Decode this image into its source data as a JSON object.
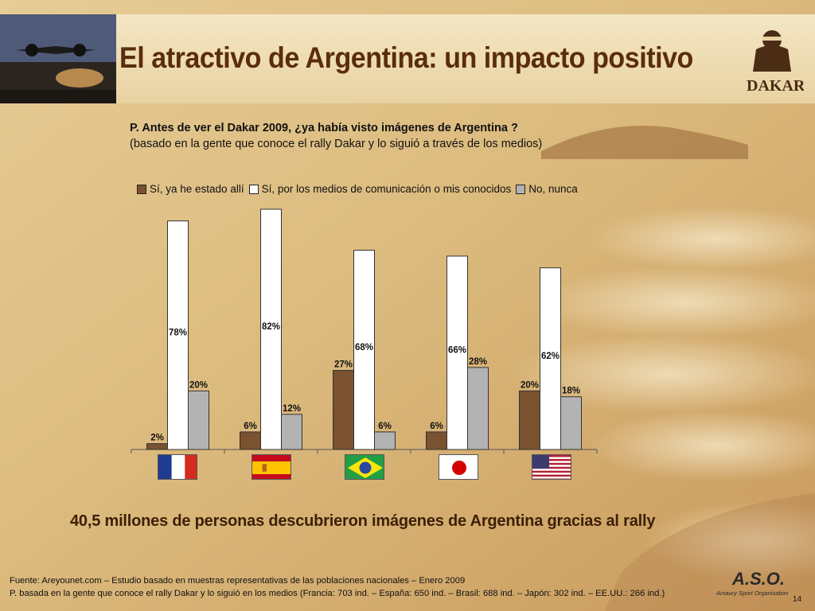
{
  "title": "El atractivo de Argentina: un impacto positivo",
  "question": {
    "line1": "P. Antes de ver el Dakar 2009, ¿ya había visto imágenes de Argentina ?",
    "line2": "(basado en la gente que conoce el rally Dakar y lo siguió a través de los medios)"
  },
  "headline": "40,5 millones de personas descubrieron imágenes de Argentina gracias al rally",
  "footnote": {
    "line1": "Fuente: Areyounet.com –  Estudio basado en muestras representativas de las poblaciones nacionales – Enero 2009",
    "line2": "P. basada en la gente que conoce el rally Dakar  y lo siguió en los medios (Francia: 703 ind. – España: 650 ind. – Brasil: 688 ind. – Japón: 302 ind. – EE.UU.: 266 ind.)"
  },
  "page_number": "14",
  "logos": {
    "dakar": "DAKAR",
    "aso": "A.S.O.",
    "aso_sub": "Amaury Sport Organisation"
  },
  "colors": {
    "been_there": "#7a5230",
    "media": "#ffffff",
    "never": "#b3b3b3",
    "title": "#5a2d0c"
  },
  "chart_data": {
    "type": "bar",
    "categories": [
      "France",
      "Spain",
      "Brazil",
      "Japan",
      "USA"
    ],
    "category_display": "flags",
    "series": [
      {
        "name": "Sí, ya he estado allí",
        "values": [
          2,
          6,
          27,
          6,
          20
        ],
        "labels": [
          "2%",
          "6%",
          "27%",
          "6%",
          "20%"
        ]
      },
      {
        "name": "Sí, por los medios de comunicación o mis conocidos",
        "values": [
          78,
          82,
          68,
          66,
          62
        ],
        "labels": [
          "78%",
          "82%",
          "68%",
          "66%",
          "62%"
        ]
      },
      {
        "name": "No, nunca",
        "values": [
          20,
          12,
          6,
          28,
          18
        ],
        "labels": [
          "20%",
          "12%",
          "6%",
          "28%",
          "18%"
        ]
      }
    ],
    "ylim": [
      0,
      82
    ],
    "grid": false,
    "legend": "top"
  }
}
